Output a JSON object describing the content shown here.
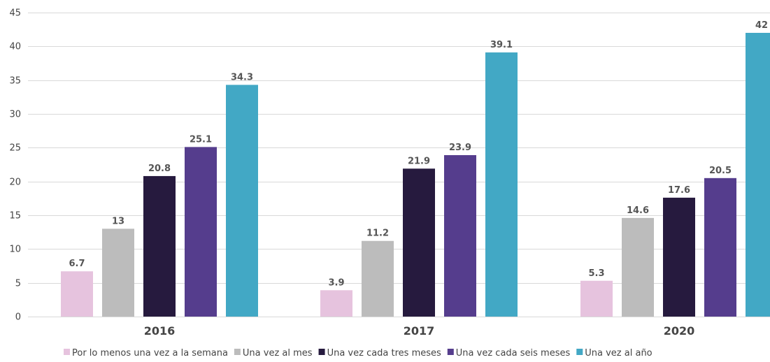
{
  "chart_data": {
    "type": "bar",
    "categories": [
      "2016",
      "2017",
      "2020"
    ],
    "series": [
      {
        "name": "Por lo menos una vez a la semana",
        "color": "#e6c3de",
        "values": [
          6.7,
          3.9,
          5.3
        ]
      },
      {
        "name": "Una vez al mes",
        "color": "#bcbcbc",
        "values": [
          13,
          11.2,
          14.6
        ]
      },
      {
        "name": "Una vez cada tres meses",
        "color": "#261a3e",
        "values": [
          20.8,
          21.9,
          17.6
        ]
      },
      {
        "name": "Una vez cada seis meses",
        "color": "#553d8d",
        "values": [
          25.1,
          23.9,
          20.5
        ]
      },
      {
        "name": "Una vez al año",
        "color": "#42a8c5",
        "values": [
          34.3,
          39.1,
          42
        ]
      }
    ],
    "ylim": [
      0,
      45
    ],
    "yticks": [
      0,
      5,
      10,
      15,
      20,
      25,
      30,
      35,
      40,
      45
    ],
    "grid": true,
    "legend_position": "bottom",
    "data_labels": true
  }
}
